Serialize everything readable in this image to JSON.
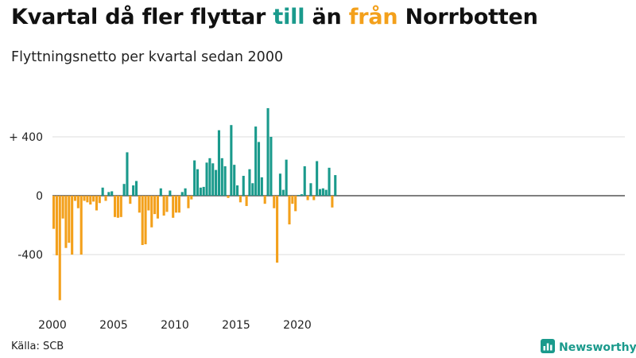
{
  "header": {
    "title_part1": "Kvartal då fler flyttar",
    "title_till": "till",
    "title_part2": "än",
    "title_fran": "från",
    "title_part3": "Norrbotten",
    "subtitle": "Flyttningsnetto per kvartal sedan 2000"
  },
  "footer": {
    "source": "Källa: SCB",
    "brand": "Newsworthy",
    "brand_icon": "bar-chart-logo-icon"
  },
  "colors": {
    "positive": "#1a9a8c",
    "negative": "#f3a01b",
    "grid": "#dddddd",
    "zero_line": "#333333"
  },
  "chart_data": {
    "type": "bar",
    "title": "Kvartal då fler flyttar till än från Norrbotten",
    "subtitle": "Flyttningsnetto per kvartal sedan 2000",
    "x_start_year": 2000,
    "periods_per_year": 4,
    "x_ticks": [
      2000,
      2005,
      2010,
      2015,
      2020
    ],
    "y_ticks": [
      {
        "value": 400,
        "label": "+ 400"
      },
      {
        "value": 0,
        "label": "0"
      },
      {
        "value": -400,
        "label": "-400"
      }
    ],
    "ylim": [
      -740,
      620
    ],
    "grid": true,
    "values": [
      -225,
      -405,
      -710,
      -155,
      -355,
      -320,
      -400,
      -35,
      -85,
      -400,
      -35,
      -45,
      -60,
      -40,
      -100,
      -50,
      55,
      -35,
      25,
      30,
      -145,
      -150,
      -145,
      80,
      295,
      -55,
      70,
      100,
      -115,
      -335,
      -330,
      -100,
      -215,
      -125,
      -155,
      50,
      -135,
      -110,
      35,
      -150,
      -115,
      -115,
      25,
      50,
      -85,
      -25,
      240,
      180,
      55,
      60,
      225,
      255,
      220,
      175,
      445,
      255,
      200,
      -15,
      480,
      210,
      70,
      -45,
      135,
      -70,
      180,
      85,
      470,
      365,
      125,
      -55,
      595,
      400,
      -85,
      -455,
      150,
      40,
      245,
      -195,
      -55,
      -105,
      5,
      10,
      200,
      -30,
      85,
      -30,
      235,
      45,
      50,
      40,
      190,
      -80,
      140
    ]
  }
}
